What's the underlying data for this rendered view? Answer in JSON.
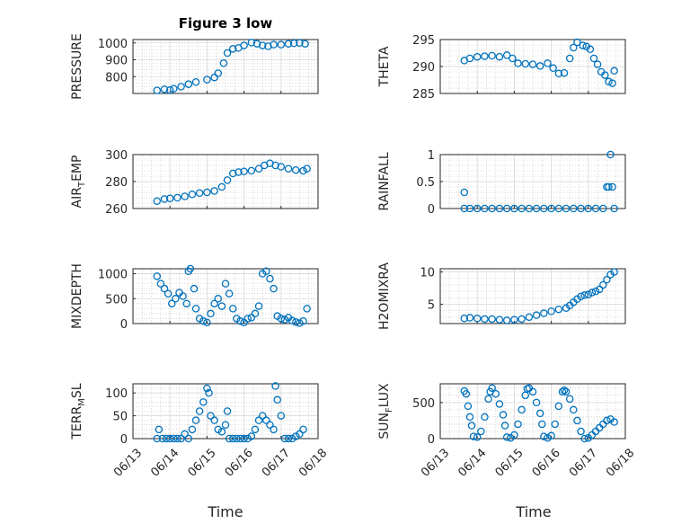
{
  "figure": {
    "title": "Figure 3 low",
    "xlabel": "Time"
  },
  "colors": {
    "marker": "#0072bd",
    "axis": "#262626",
    "grid": "#d9d9d9"
  },
  "chart_data": [
    {
      "type": "scatter",
      "ylabel_main": "PRESSURE",
      "ylabel_sub": "",
      "xlim": [
        0,
        5
      ],
      "ylim": [
        700,
        1020
      ],
      "yticks": [
        800,
        900,
        1000
      ],
      "ytick_labels": [
        "800",
        "900",
        "1000"
      ],
      "xticks": [
        0,
        1,
        2,
        3,
        4,
        5
      ],
      "xtick_labels": [
        "06/13",
        "06/14",
        "06/15",
        "06/16",
        "06/17",
        "06/18"
      ],
      "x": [
        0.65,
        0.85,
        1.0,
        1.1,
        1.3,
        1.5,
        1.7,
        2.0,
        2.2,
        2.3,
        2.45,
        2.55,
        2.7,
        2.85,
        3.0,
        3.2,
        3.35,
        3.5,
        3.65,
        3.8,
        4.0,
        4.2,
        4.35,
        4.5,
        4.65
      ],
      "y": [
        718,
        725,
        720,
        728,
        740,
        755,
        768,
        782,
        795,
        820,
        880,
        940,
        965,
        970,
        985,
        1002,
        995,
        985,
        980,
        990,
        990,
        995,
        998,
        1000,
        995
      ]
    },
    {
      "type": "scatter",
      "ylabel_main": "THETA",
      "ylabel_sub": "",
      "xlim": [
        0,
        5
      ],
      "ylim": [
        285,
        295
      ],
      "yticks": [
        285,
        290,
        295
      ],
      "ytick_labels": [
        "285",
        "290",
        "295"
      ],
      "xticks": [
        0,
        1,
        2,
        3,
        4,
        5
      ],
      "xtick_labels": [
        "06/13",
        "06/14",
        "06/15",
        "06/16",
        "06/17",
        "06/18"
      ],
      "x": [
        0.65,
        0.8,
        1.0,
        1.2,
        1.4,
        1.6,
        1.8,
        1.95,
        2.1,
        2.3,
        2.5,
        2.7,
        2.9,
        3.05,
        3.2,
        3.35,
        3.5,
        3.6,
        3.7,
        3.85,
        3.95,
        4.05,
        4.15,
        4.25,
        4.35,
        4.45,
        4.55,
        4.65,
        4.7
      ],
      "y": [
        291.1,
        291.5,
        291.8,
        291.9,
        292.0,
        291.8,
        292.1,
        291.5,
        290.6,
        290.5,
        290.4,
        290.1,
        290.6,
        289.7,
        288.7,
        288.8,
        291.5,
        293.5,
        294.5,
        293.9,
        293.7,
        293.2,
        291.5,
        290.4,
        289.0,
        288.4,
        287.2,
        286.9,
        289.2
      ]
    },
    {
      "type": "scatter",
      "ylabel_main": "AIR",
      "ylabel_sub": "T",
      "ylabel_tail": "EMP",
      "xlim": [
        0,
        5
      ],
      "ylim": [
        260,
        300
      ],
      "yticks": [
        260,
        280,
        300
      ],
      "ytick_labels": [
        "260",
        "280",
        "300"
      ],
      "xticks": [
        0,
        1,
        2,
        3,
        4,
        5
      ],
      "xtick_labels": [
        "06/13",
        "06/14",
        "06/15",
        "06/16",
        "06/17",
        "06/18"
      ],
      "x": [
        0.65,
        0.85,
        1.0,
        1.2,
        1.4,
        1.6,
        1.8,
        2.0,
        2.2,
        2.4,
        2.55,
        2.7,
        2.85,
        3.0,
        3.2,
        3.4,
        3.55,
        3.7,
        3.85,
        4.0,
        4.2,
        4.4,
        4.6,
        4.7
      ],
      "y": [
        265.5,
        267,
        267.5,
        268,
        269,
        270.5,
        271.5,
        272,
        273,
        276,
        281,
        286,
        287,
        287.5,
        288,
        289.5,
        292,
        293.5,
        292,
        291,
        289.5,
        288.5,
        288,
        289.5
      ]
    },
    {
      "type": "scatter",
      "ylabel_main": "RAINFALL",
      "ylabel_sub": "",
      "xlim": [
        0,
        5
      ],
      "ylim": [
        0,
        1
      ],
      "yticks": [
        0,
        0.5,
        1
      ],
      "ytick_labels": [
        "0",
        "0.5",
        "1"
      ],
      "xticks": [
        0,
        1,
        2,
        3,
        4,
        5
      ],
      "xtick_labels": [
        "06/13",
        "06/14",
        "06/15",
        "06/16",
        "06/17",
        "06/18"
      ],
      "x": [
        0.65,
        0.65,
        0.8,
        1.0,
        1.2,
        1.4,
        1.6,
        1.8,
        2.0,
        2.2,
        2.4,
        2.6,
        2.8,
        3.0,
        3.2,
        3.4,
        3.6,
        3.8,
        4.0,
        4.2,
        4.4,
        4.5,
        4.55,
        4.6,
        4.65,
        4.7
      ],
      "y": [
        0.3,
        0.0,
        0.0,
        0.0,
        0.0,
        0.0,
        0.0,
        0.0,
        0.0,
        0.0,
        0.0,
        0.0,
        0.0,
        0.0,
        0.0,
        0.0,
        0.0,
        0.0,
        0.0,
        0.0,
        0.0,
        0.4,
        0.4,
        1.0,
        0.4,
        0.0
      ]
    },
    {
      "type": "scatter",
      "ylabel_main": "MIXDEPTH",
      "ylabel_sub": "",
      "xlim": [
        0,
        5
      ],
      "ylim": [
        0,
        1100
      ],
      "yticks": [
        0,
        500,
        1000
      ],
      "ytick_labels": [
        "0",
        "500",
        "1000"
      ],
      "xticks": [
        0,
        1,
        2,
        3,
        4,
        5
      ],
      "xtick_labels": [
        "06/13",
        "06/14",
        "06/15",
        "06/16",
        "06/17",
        "06/18"
      ],
      "x": [
        0.65,
        0.75,
        0.85,
        0.95,
        1.05,
        1.15,
        1.25,
        1.35,
        1.45,
        1.5,
        1.55,
        1.65,
        1.7,
        1.8,
        1.9,
        2.0,
        2.1,
        2.2,
        2.3,
        2.4,
        2.5,
        2.6,
        2.7,
        2.8,
        2.9,
        3.0,
        3.1,
        3.2,
        3.3,
        3.4,
        3.5,
        3.6,
        3.7,
        3.8,
        3.9,
        4.0,
        4.1,
        4.2,
        4.3,
        4.4,
        4.5,
        4.6,
        4.7
      ],
      "y": [
        950,
        800,
        700,
        600,
        400,
        500,
        620,
        550,
        400,
        1050,
        1100,
        700,
        300,
        100,
        50,
        20,
        200,
        400,
        500,
        350,
        800,
        600,
        300,
        100,
        50,
        20,
        100,
        120,
        200,
        350,
        1000,
        1050,
        900,
        700,
        150,
        100,
        80,
        120,
        60,
        30,
        10,
        50,
        300
      ]
    },
    {
      "type": "scatter",
      "ylabel_main": "H2OMIXRA",
      "ylabel_sub": "",
      "xlim": [
        0,
        5
      ],
      "ylim": [
        2,
        10.5
      ],
      "yticks": [
        5,
        10
      ],
      "ytick_labels": [
        "5",
        "10"
      ],
      "xticks": [
        0,
        1,
        2,
        3,
        4,
        5
      ],
      "xtick_labels": [
        "06/13",
        "06/14",
        "06/15",
        "06/16",
        "06/17",
        "06/18"
      ],
      "x": [
        0.65,
        0.8,
        1.0,
        1.2,
        1.4,
        1.6,
        1.8,
        2.0,
        2.2,
        2.4,
        2.6,
        2.8,
        3.0,
        3.2,
        3.4,
        3.5,
        3.6,
        3.7,
        3.8,
        3.9,
        4.0,
        4.1,
        4.2,
        4.3,
        4.4,
        4.5,
        4.6,
        4.7
      ],
      "y": [
        2.8,
        2.9,
        2.8,
        2.7,
        2.7,
        2.6,
        2.5,
        2.6,
        2.7,
        3.0,
        3.3,
        3.6,
        3.9,
        4.2,
        4.4,
        4.8,
        5.3,
        5.8,
        6.2,
        6.4,
        6.5,
        6.8,
        7.0,
        7.3,
        8.0,
        8.8,
        9.6,
        10.0
      ]
    },
    {
      "type": "scatter",
      "ylabel_main": "TERR",
      "ylabel_sub": "M",
      "ylabel_tail": "SL",
      "xlim": [
        0,
        5
      ],
      "ylim": [
        0,
        120
      ],
      "yticks": [
        0,
        50,
        100
      ],
      "ytick_labels": [
        "0",
        "50",
        "100"
      ],
      "xticks": [
        0,
        1,
        2,
        3,
        4,
        5
      ],
      "xtick_labels": [
        "06/13",
        "06/14",
        "06/15",
        "06/16",
        "06/17",
        "06/18"
      ],
      "x": [
        0.65,
        0.7,
        0.8,
        0.9,
        1.0,
        1.1,
        1.2,
        1.3,
        1.4,
        1.5,
        1.6,
        1.7,
        1.8,
        1.9,
        2.0,
        2.05,
        2.1,
        2.2,
        2.3,
        2.4,
        2.5,
        2.55,
        2.6,
        2.7,
        2.8,
        2.9,
        3.0,
        3.1,
        3.2,
        3.3,
        3.4,
        3.5,
        3.6,
        3.7,
        3.8,
        3.85,
        3.9,
        4.0,
        4.1,
        4.2,
        4.3,
        4.4,
        4.5,
        4.6
      ],
      "y": [
        0,
        20,
        0,
        0,
        0,
        0,
        0,
        0,
        10,
        0,
        20,
        40,
        60,
        80,
        110,
        100,
        50,
        40,
        20,
        15,
        30,
        60,
        0,
        0,
        0,
        0,
        0,
        0,
        5,
        20,
        40,
        50,
        40,
        30,
        20,
        115,
        85,
        50,
        0,
        0,
        0,
        5,
        10,
        20
      ]
    },
    {
      "type": "scatter",
      "ylabel_main": "SUN",
      "ylabel_sub": "F",
      "ylabel_tail": "LUX",
      "xlim": [
        0,
        5
      ],
      "ylim": [
        0,
        760
      ],
      "yticks": [
        0,
        500
      ],
      "ytick_labels": [
        "0",
        "500"
      ],
      "xticks": [
        0,
        1,
        2,
        3,
        4,
        5
      ],
      "xtick_labels": [
        "06/13",
        "06/14",
        "06/15",
        "06/16",
        "06/17",
        "06/18"
      ],
      "x": [
        0.65,
        0.7,
        0.75,
        0.8,
        0.85,
        0.9,
        1.0,
        1.1,
        1.2,
        1.3,
        1.35,
        1.4,
        1.5,
        1.6,
        1.7,
        1.75,
        1.8,
        1.9,
        2.0,
        2.1,
        2.2,
        2.3,
        2.35,
        2.4,
        2.5,
        2.6,
        2.7,
        2.75,
        2.8,
        2.9,
        3.0,
        3.1,
        3.2,
        3.3,
        3.35,
        3.4,
        3.5,
        3.6,
        3.7,
        3.8,
        3.9,
        4.0,
        4.1,
        4.2,
        4.3,
        4.4,
        4.5,
        4.6,
        4.7
      ],
      "y": [
        660,
        620,
        450,
        300,
        180,
        30,
        20,
        100,
        300,
        550,
        650,
        700,
        620,
        480,
        330,
        180,
        20,
        10,
        50,
        200,
        400,
        600,
        690,
        700,
        650,
        500,
        350,
        200,
        30,
        10,
        40,
        200,
        450,
        650,
        670,
        650,
        550,
        400,
        250,
        100,
        0,
        10,
        50,
        100,
        150,
        200,
        250,
        270,
        230
      ]
    }
  ]
}
